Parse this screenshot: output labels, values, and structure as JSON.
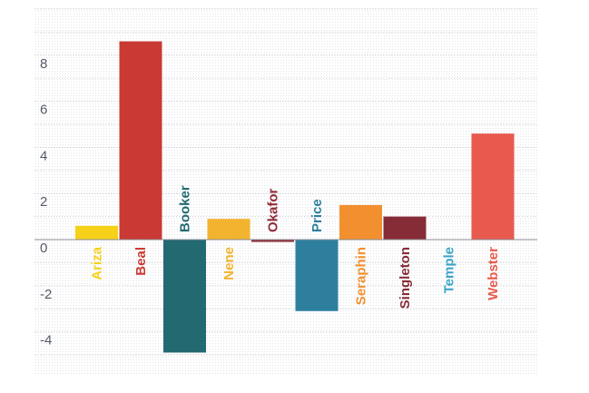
{
  "chart_data": {
    "type": "bar",
    "categories": [
      "Ariza",
      "Beal",
      "Booker",
      "Nene",
      "Okafor",
      "Price",
      "Seraphin",
      "Singleton",
      "Temple",
      "Webster"
    ],
    "values": [
      0.6,
      8.6,
      -4.9,
      0.9,
      -0.1,
      -3.1,
      1.5,
      1.0,
      0.0,
      4.6
    ],
    "colors": [
      "#f5d11a",
      "#c93a34",
      "#236972",
      "#f2b32f",
      "#8f2d38",
      "#2e7f9e",
      "#f2902f",
      "#862c36",
      "#3aa4c6",
      "#e85a4d"
    ],
    "yticks": [
      8,
      6,
      4,
      2,
      0,
      -2,
      -4
    ],
    "ylim": [
      -5.8,
      10
    ],
    "grid": true,
    "xlabel": "",
    "ylabel": "",
    "title": ""
  }
}
